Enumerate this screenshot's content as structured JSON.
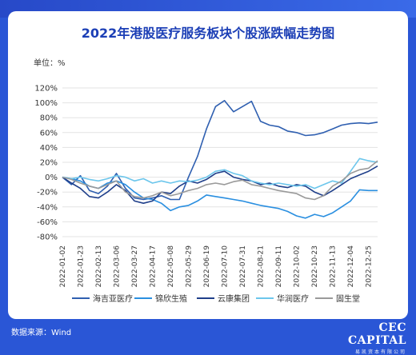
{
  "header": {
    "title": "2022年港股医疗服务板块个股涨跌幅走势图",
    "unit": "单位：%"
  },
  "footer": {
    "source": "数据来源：Wind",
    "logo_text": "CEC CAPITAL",
    "logo_subtext": "易凯资本有限公司"
  },
  "colors": {
    "background": "#2a56d6",
    "title": "#1c3fb6",
    "series": [
      "#2f5fb0",
      "#2a8fe0",
      "#1f3f8a",
      "#6cc6ec",
      "#9a9a9a"
    ]
  },
  "chart_data": {
    "type": "line",
    "title": "2022年港股医疗服务板块个股涨跌幅走势图",
    "ylabel": "单位：%",
    "xlabel": "",
    "ylim": [
      -80,
      120
    ],
    "yticks": [
      "120%",
      "100%",
      "80%",
      "60%",
      "40%",
      "20%",
      "0%",
      "-20%",
      "-40%",
      "-60%",
      "-80%"
    ],
    "grid": true,
    "legend_position": "bottom",
    "x": [
      "2022-01-02",
      "2022-01-12",
      "2022-01-23",
      "2022-02-02",
      "2022-02-13",
      "2022-02-23",
      "2022-03-06",
      "2022-03-16",
      "2022-03-27",
      "2022-04-06",
      "2022-04-17",
      "2022-04-27",
      "2022-05-08",
      "2022-05-18",
      "2022-05-29",
      "2022-06-08",
      "2022-06-19",
      "2022-06-29",
      "2022-07-10",
      "2022-07-20",
      "2022-07-31",
      "2022-08-10",
      "2022-08-21",
      "2022-08-31",
      "2022-09-11",
      "2022-09-21",
      "2022-10-02",
      "2022-10-12",
      "2022-10-23",
      "2022-11-02",
      "2022-11-13",
      "2022-11-23",
      "2022-12-04",
      "2022-12-14",
      "2022-12-25",
      "2022-12-31"
    ],
    "xtick_labels": [
      "2022-01-02",
      "2022-01-23",
      "2022-02-13",
      "2022-03-06",
      "2022-03-27",
      "2022-04-17",
      "2022-05-08",
      "2022-05-29",
      "2022-06-19",
      "2022-07-10",
      "2022-07-31",
      "2022-08-21",
      "2022-09-11",
      "2022-10-02",
      "2022-10-23",
      "2022-11-13",
      "2022-12-04",
      "2022-12-25"
    ],
    "series": [
      {
        "name": "海吉亚医疗",
        "values": [
          0,
          -10,
          2,
          -18,
          -22,
          -12,
          5,
          -15,
          -28,
          -30,
          -28,
          -25,
          -30,
          -30,
          0,
          28,
          65,
          95,
          103,
          88,
          95,
          102,
          75,
          70,
          68,
          62,
          60,
          56,
          57,
          60,
          65,
          70,
          72,
          73,
          72,
          74
        ]
      },
      {
        "name": "锦欣生殖",
        "values": [
          0,
          -2,
          -5,
          -12,
          -15,
          -8,
          -5,
          -10,
          -20,
          -28,
          -30,
          -35,
          -45,
          -40,
          -38,
          -32,
          -24,
          -26,
          -28,
          -30,
          -32,
          -35,
          -38,
          -40,
          -42,
          -46,
          -52,
          -55,
          -50,
          -53,
          -48,
          -40,
          -32,
          -17,
          -18,
          -18
        ]
      },
      {
        "name": "云康集团",
        "values": [
          0,
          -8,
          -15,
          -26,
          -28,
          -20,
          -10,
          -18,
          -32,
          -35,
          -32,
          -20,
          -22,
          -12,
          -5,
          -8,
          -3,
          5,
          8,
          0,
          -3,
          -5,
          -10,
          -8,
          -12,
          -14,
          -10,
          -12,
          -20,
          -25,
          -18,
          -10,
          -2,
          3,
          8,
          15
        ]
      },
      {
        "name": "华润医疗",
        "values": [
          0,
          -2,
          0,
          -3,
          -5,
          -2,
          2,
          0,
          -5,
          -2,
          -8,
          -5,
          -8,
          -5,
          -6,
          -4,
          0,
          8,
          10,
          5,
          2,
          -5,
          -8,
          -10,
          -8,
          -10,
          -12,
          -10,
          -15,
          -10,
          -5,
          -8,
          8,
          25,
          22,
          20
        ]
      },
      {
        "name": "固生堂",
        "values": [
          0,
          -3,
          -8,
          -12,
          -15,
          -10,
          -5,
          -20,
          -26,
          -28,
          -25,
          -20,
          -25,
          -22,
          -18,
          -15,
          -10,
          -8,
          -10,
          -6,
          -4,
          -10,
          -12,
          -15,
          -18,
          -20,
          -22,
          -28,
          -30,
          -25,
          -12,
          -5,
          5,
          10,
          12,
          22
        ]
      }
    ]
  }
}
